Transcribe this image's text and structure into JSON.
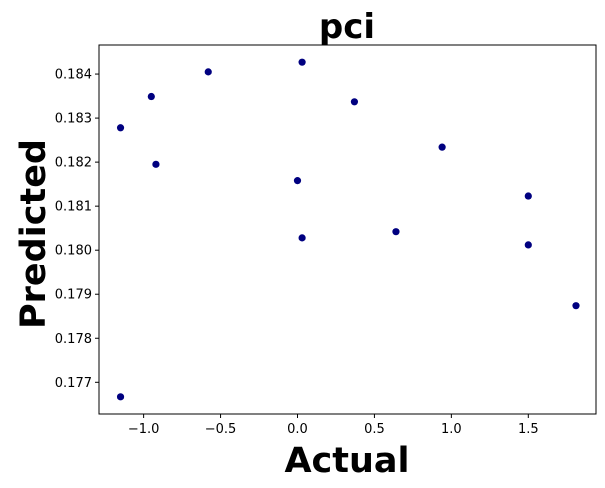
{
  "chart_data": {
    "type": "scatter",
    "title": "pci",
    "xlabel": "Actual",
    "ylabel": "Predicted",
    "xlim": [
      -1.29,
      1.94
    ],
    "ylim": [
      0.17628,
      0.18466
    ],
    "x_ticks": [
      -1.0,
      -0.5,
      0.0,
      0.5,
      1.0,
      1.5
    ],
    "x_tick_labels": [
      "−1.0",
      "−0.5",
      "0.0",
      "0.5",
      "1.0",
      "1.5"
    ],
    "y_ticks": [
      0.177,
      0.178,
      0.179,
      0.18,
      0.181,
      0.182,
      0.183,
      0.184
    ],
    "y_tick_labels": [
      "0.177",
      "0.178",
      "0.179",
      "0.180",
      "0.181",
      "0.182",
      "0.183",
      "0.184"
    ],
    "grid": false,
    "marker_color": "#000080",
    "points": [
      {
        "x": -1.15,
        "y": 0.18278
      },
      {
        "x": -1.15,
        "y": 0.17667
      },
      {
        "x": -0.95,
        "y": 0.18349
      },
      {
        "x": -0.92,
        "y": 0.18195
      },
      {
        "x": -0.58,
        "y": 0.18405
      },
      {
        "x": 0.0,
        "y": 0.18158
      },
      {
        "x": 0.03,
        "y": 0.18427
      },
      {
        "x": 0.03,
        "y": 0.18028
      },
      {
        "x": 0.37,
        "y": 0.18337
      },
      {
        "x": 0.64,
        "y": 0.18042
      },
      {
        "x": 0.94,
        "y": 0.18234
      },
      {
        "x": 1.5,
        "y": 0.18123
      },
      {
        "x": 1.5,
        "y": 0.18012
      },
      {
        "x": 1.81,
        "y": 0.17874
      }
    ]
  }
}
